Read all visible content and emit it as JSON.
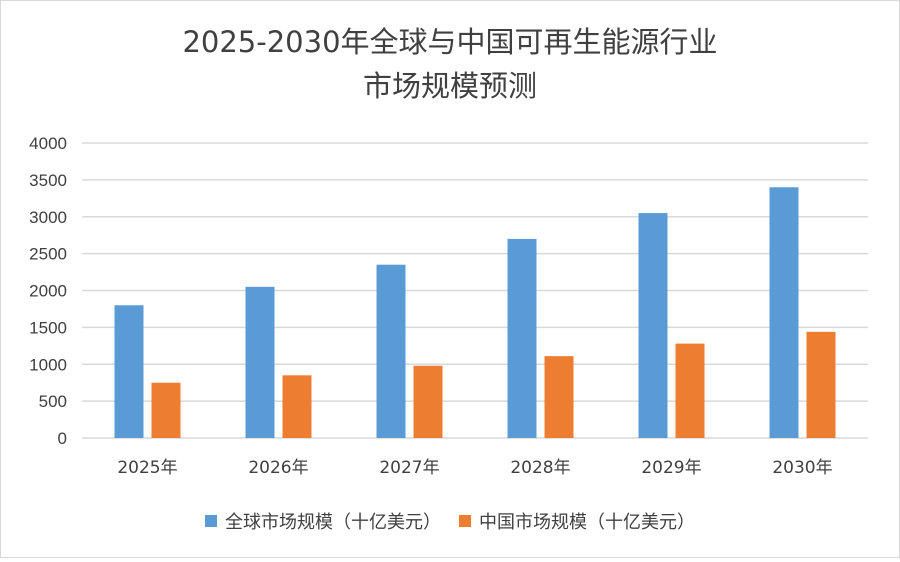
{
  "chart_data": {
    "type": "bar",
    "title_line1": "2025-2030年全球与中国可再生能源行业",
    "title_line2": "市场规模预测",
    "categories": [
      "2025年",
      "2026年",
      "2027年",
      "2028年",
      "2029年",
      "2030年"
    ],
    "series": [
      {
        "name": "全球市场规模（十亿美元）",
        "color": "#5b9bd5",
        "values": [
          1800,
          2050,
          2350,
          2700,
          3050,
          3400
        ]
      },
      {
        "name": "中国市场规模（十亿美元）",
        "color": "#ed7d31",
        "values": [
          750,
          850,
          980,
          1110,
          1280,
          1440
        ]
      }
    ],
    "ylim": [
      0,
      4000
    ],
    "yticks": [
      "0",
      "500",
      "1000",
      "1500",
      "2000",
      "2500",
      "3000",
      "3500",
      "4000"
    ],
    "grid": true,
    "legend_position": "bottom"
  }
}
